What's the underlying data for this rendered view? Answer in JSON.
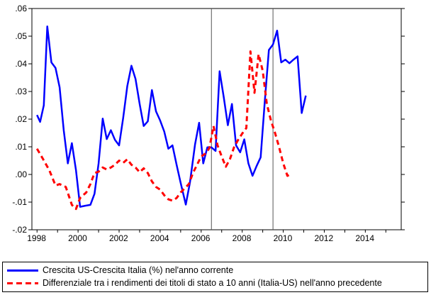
{
  "chart_data": {
    "type": "line",
    "title": "",
    "xlabel": "",
    "ylabel": "",
    "xlim": [
      1997.75,
      2015.75
    ],
    "ylim": [
      -0.02,
      0.06
    ],
    "y_ticks": [
      ".06",
      ".05",
      ".04",
      ".03",
      ".02",
      ".01",
      ".00",
      "-.01",
      "-.02"
    ],
    "y_tick_values": [
      0.06,
      0.05,
      0.04,
      0.03,
      0.02,
      0.01,
      0.0,
      -0.01,
      -0.02
    ],
    "x_ticks": [
      "1998",
      "2000",
      "2002",
      "2004",
      "2006",
      "2008",
      "2010",
      "2012",
      "2014"
    ],
    "x_tick_values": [
      1998,
      2000,
      2002,
      2004,
      2006,
      2008,
      2010,
      2012,
      2014
    ],
    "vertical_lines": [
      2006.5,
      2009.5
    ],
    "grid": false,
    "legend_position": "bottom",
    "series": [
      {
        "name": "Crescita US-Crescita Italia (%) nel'anno corrente",
        "color": "#0000ff",
        "style": "solid",
        "points": [
          [
            1998.0,
            0.0215
          ],
          [
            1998.15,
            0.019
          ],
          [
            1998.33,
            0.025
          ],
          [
            1998.5,
            0.0535
          ],
          [
            1998.7,
            0.0405
          ],
          [
            1998.9,
            0.0385
          ],
          [
            1999.1,
            0.0315
          ],
          [
            1999.3,
            0.016
          ],
          [
            1999.5,
            0.004
          ],
          [
            1999.7,
            0.0113
          ],
          [
            1999.9,
            0.0015
          ],
          [
            2000.1,
            -0.0117
          ],
          [
            2000.35,
            -0.0113
          ],
          [
            2000.6,
            -0.011
          ],
          [
            2000.8,
            -0.007
          ],
          [
            2001.0,
            0.004
          ],
          [
            2001.2,
            0.0202
          ],
          [
            2001.4,
            0.0128
          ],
          [
            2001.6,
            0.016
          ],
          [
            2001.8,
            0.0125
          ],
          [
            2002.0,
            0.0105
          ],
          [
            2002.2,
            0.0205
          ],
          [
            2002.4,
            0.032
          ],
          [
            2002.6,
            0.0393
          ],
          [
            2002.8,
            0.0345
          ],
          [
            2003.0,
            0.0255
          ],
          [
            2003.2,
            0.0175
          ],
          [
            2003.4,
            0.0192
          ],
          [
            2003.6,
            0.0305
          ],
          [
            2003.8,
            0.0228
          ],
          [
            2004.0,
            0.0195
          ],
          [
            2004.2,
            0.0155
          ],
          [
            2004.4,
            0.0093
          ],
          [
            2004.6,
            0.0105
          ],
          [
            2004.8,
            0.0035
          ],
          [
            2005.0,
            -0.003
          ],
          [
            2005.25,
            -0.0109
          ],
          [
            2005.45,
            -0.003
          ],
          [
            2005.7,
            0.0108
          ],
          [
            2005.9,
            0.0187
          ],
          [
            2006.1,
            0.004
          ],
          [
            2006.3,
            0.0098
          ],
          [
            2006.5,
            0.0098
          ],
          [
            2006.7,
            0.0085
          ],
          [
            2006.9,
            0.0373
          ],
          [
            2007.1,
            0.028
          ],
          [
            2007.3,
            0.0178
          ],
          [
            2007.5,
            0.0255
          ],
          [
            2007.7,
            0.0105
          ],
          [
            2007.9,
            0.008
          ],
          [
            2008.1,
            0.0127
          ],
          [
            2008.3,
            0.004
          ],
          [
            2008.5,
            -0.0005
          ],
          [
            2008.7,
            0.003
          ],
          [
            2008.9,
            0.0062
          ],
          [
            2009.1,
            0.0263
          ],
          [
            2009.3,
            0.045
          ],
          [
            2009.5,
            0.047
          ],
          [
            2009.7,
            0.052
          ],
          [
            2009.9,
            0.0405
          ],
          [
            2010.1,
            0.0415
          ],
          [
            2010.3,
            0.0402
          ],
          [
            2010.5,
            0.0415
          ],
          [
            2010.7,
            0.0427
          ],
          [
            2010.9,
            0.0222
          ],
          [
            2011.1,
            0.0285
          ]
        ]
      },
      {
        "name": "Differenziale tra i rendimenti dei titoli di stato a 10 anni (Italia-US)  nell'anno precedente",
        "color": "#ff0000",
        "style": "dashed",
        "points": [
          [
            1998.0,
            0.0093
          ],
          [
            1998.3,
            0.0055
          ],
          [
            1998.6,
            0.0015
          ],
          [
            1998.9,
            -0.004
          ],
          [
            1999.1,
            -0.0035
          ],
          [
            1999.4,
            -0.0045
          ],
          [
            1999.7,
            -0.011
          ],
          [
            1999.9,
            -0.0125
          ],
          [
            2000.1,
            -0.0085
          ],
          [
            2000.4,
            -0.0065
          ],
          [
            2000.6,
            -0.0035
          ],
          [
            2000.8,
            0.0005
          ],
          [
            2001.0,
            0.001
          ],
          [
            2001.2,
            0.0025
          ],
          [
            2001.4,
            0.0018
          ],
          [
            2001.6,
            0.0025
          ],
          [
            2001.8,
            0.0035
          ],
          [
            2002.0,
            0.005
          ],
          [
            2002.2,
            0.0042
          ],
          [
            2002.4,
            0.0055
          ],
          [
            2002.6,
            0.0035
          ],
          [
            2002.8,
            0.0025
          ],
          [
            2003.0,
            0.0008
          ],
          [
            2003.2,
            0.0022
          ],
          [
            2003.4,
            0.0005
          ],
          [
            2003.6,
            -0.0025
          ],
          [
            2003.8,
            -0.0045
          ],
          [
            2004.0,
            -0.0055
          ],
          [
            2004.2,
            -0.0075
          ],
          [
            2004.4,
            -0.009
          ],
          [
            2004.6,
            -0.0095
          ],
          [
            2004.8,
            -0.0085
          ],
          [
            2005.0,
            -0.0065
          ],
          [
            2005.2,
            -0.005
          ],
          [
            2005.4,
            -0.0035
          ],
          [
            2005.6,
            0.0005
          ],
          [
            2005.8,
            0.0035
          ],
          [
            2006.0,
            0.0065
          ],
          [
            2006.2,
            0.0075
          ],
          [
            2006.4,
            0.0095
          ],
          [
            2006.6,
            0.0175
          ],
          [
            2006.8,
            0.0105
          ],
          [
            2007.0,
            0.0065
          ],
          [
            2007.2,
            0.0028
          ],
          [
            2007.4,
            0.0055
          ],
          [
            2007.6,
            0.0098
          ],
          [
            2007.8,
            0.0125
          ],
          [
            2008.0,
            0.0148
          ],
          [
            2008.2,
            0.0168
          ],
          [
            2008.4,
            0.0445
          ],
          [
            2008.6,
            0.0295
          ],
          [
            2008.8,
            0.0435
          ],
          [
            2009.0,
            0.0375
          ],
          [
            2009.2,
            0.0255
          ],
          [
            2009.4,
            0.0195
          ],
          [
            2009.6,
            0.015
          ],
          [
            2009.8,
            0.0098
          ],
          [
            2010.0,
            0.004
          ],
          [
            2010.2,
            -0.0005
          ],
          [
            2010.4,
            0.0002
          ]
        ]
      }
    ]
  }
}
